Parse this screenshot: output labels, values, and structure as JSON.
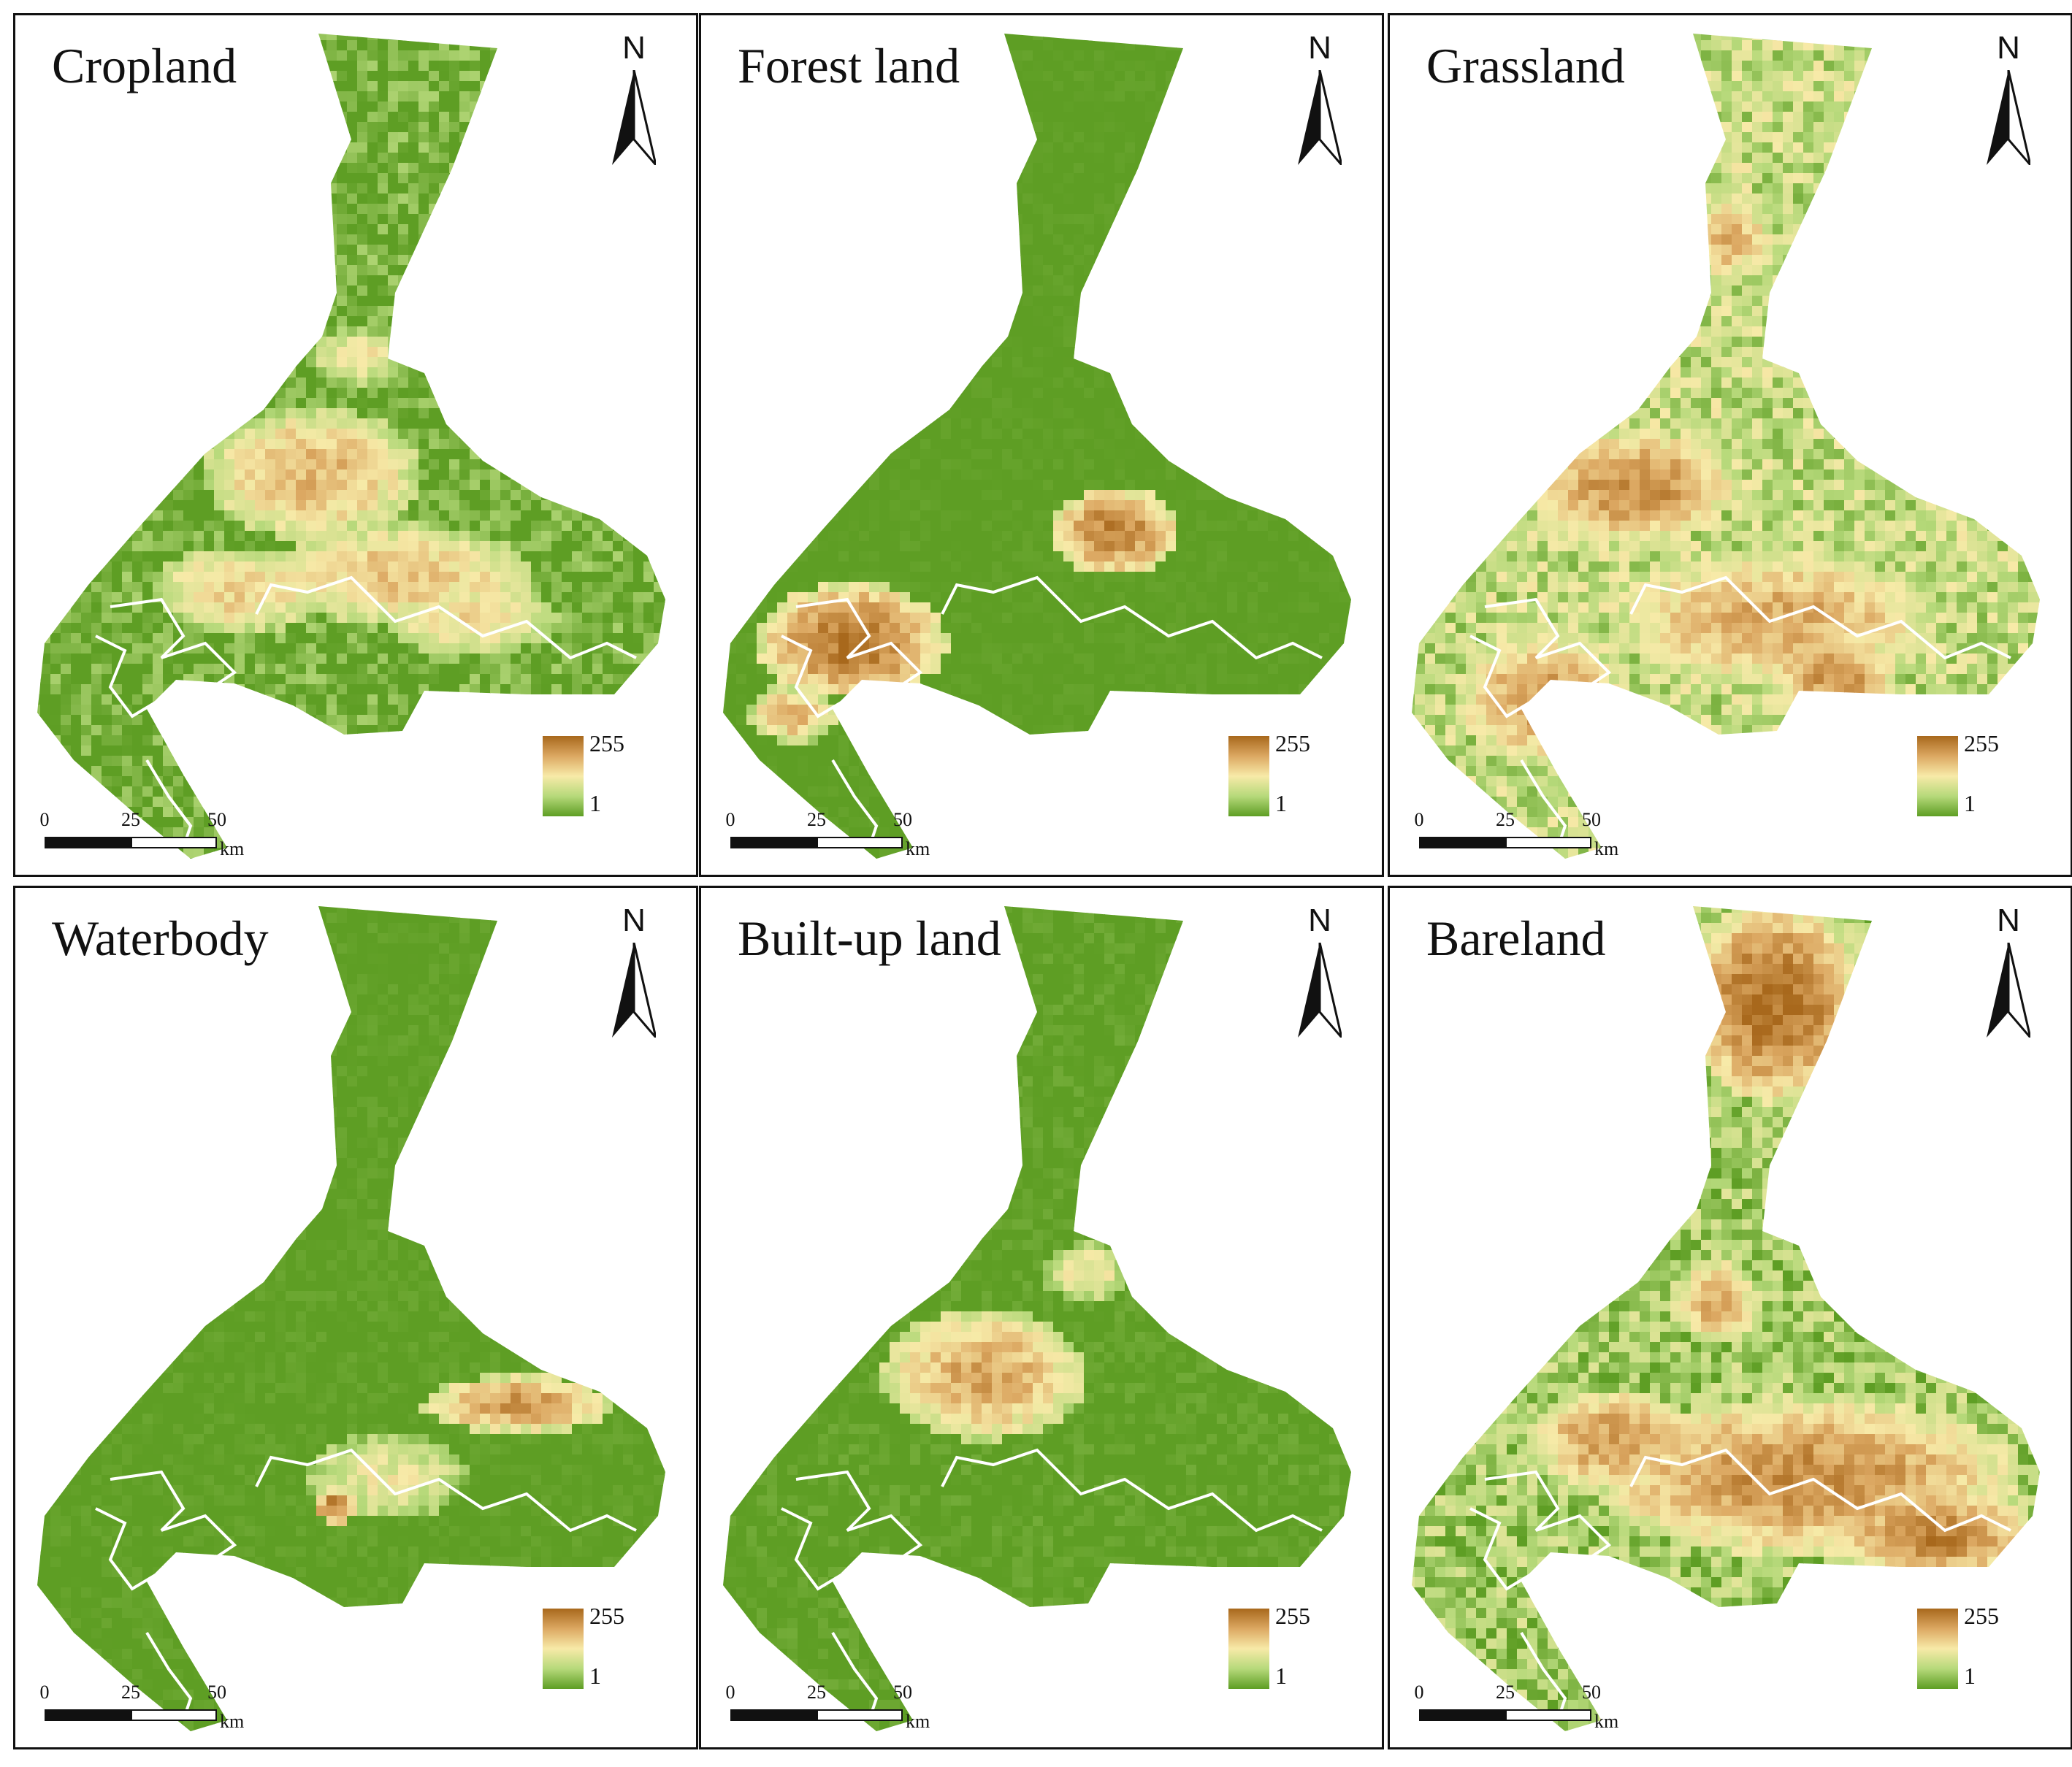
{
  "figure": {
    "panels": [
      {
        "id": "cropland",
        "title": "Cropland",
        "pattern": "mixed"
      },
      {
        "id": "forest",
        "title": "Forest land",
        "pattern": "forest"
      },
      {
        "id": "grassland",
        "title": "Grassland",
        "pattern": "grass"
      },
      {
        "id": "waterbody",
        "title": "Waterbody",
        "pattern": "water"
      },
      {
        "id": "builtup",
        "title": "Built-up land",
        "pattern": "built"
      },
      {
        "id": "bareland",
        "title": "Bareland",
        "pattern": "bare"
      }
    ],
    "north_label": "N",
    "legend": {
      "max": "255",
      "min": "1"
    },
    "scalebar": {
      "ticks": [
        "0",
        "25",
        "50"
      ],
      "unit": "km"
    },
    "colors": {
      "low": "#5e9e24",
      "mid_low": "#b6d97a",
      "mid": "#f7eaa8",
      "mid_high": "#dca862",
      "high": "#a8681c",
      "boundary": "#ffffff"
    }
  }
}
